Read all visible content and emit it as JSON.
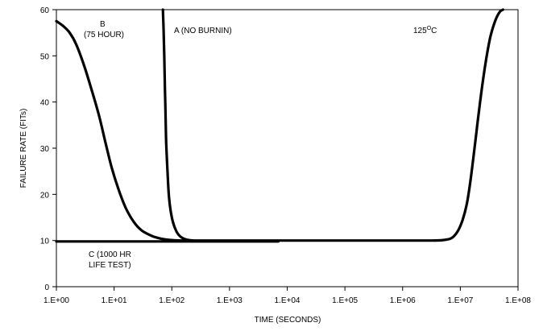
{
  "chart_data": {
    "type": "line",
    "title": "",
    "xlabel": "TIME (SECONDS)",
    "ylabel": "FAILURE RATE (FITs)",
    "x_scale": "log",
    "xlim": [
      1,
      100000000
    ],
    "ylim": [
      0,
      60
    ],
    "x_ticks": [
      1,
      10,
      100,
      1000,
      10000,
      100000,
      1000000,
      10000000,
      100000000
    ],
    "x_tick_labels": [
      "1.E+00",
      "1.E+01",
      "1.E+02",
      "1.E+03",
      "1.E+04",
      "1.E+05",
      "1.E+06",
      "1.E+07",
      "1.E+08"
    ],
    "y_ticks": [
      0,
      10,
      20,
      30,
      40,
      50,
      60
    ],
    "y_tick_labels": [
      "0",
      "10",
      "20",
      "30",
      "40",
      "50",
      "60"
    ],
    "grid": false,
    "legend": "none",
    "temperature_label": {
      "base": "125",
      "superscript": "O",
      "suffix": "C"
    },
    "series": [
      {
        "name": "A (NO BURNIN)",
        "x": [
          70,
          72,
          74,
          76,
          78,
          80,
          85,
          90,
          100,
          115,
          130,
          150,
          180,
          250,
          400,
          1000,
          10000,
          100000,
          1000000,
          3000000,
          5000000,
          7000000,
          9000000,
          11000000,
          13000000,
          15000000,
          18000000,
          22000000,
          27000000,
          33000000,
          40000000,
          48000000,
          55000000
        ],
        "y": [
          60,
          56,
          50,
          43,
          37,
          31,
          24,
          19,
          15,
          12.5,
          11.3,
          10.6,
          10.2,
          10,
          10,
          10,
          10,
          10,
          10,
          10,
          10.1,
          10.5,
          12,
          14.5,
          18,
          23,
          31,
          40,
          48,
          54,
          57.5,
          59.5,
          60.5
        ]
      },
      {
        "name": "B (75 HOUR)",
        "label_lines": [
          "B",
          "(75 HOUR)"
        ],
        "x": [
          1,
          1.3,
          1.7,
          2.2,
          3,
          4,
          5.5,
          7,
          9,
          12,
          16,
          22,
          30,
          45,
          60,
          80,
          110,
          150,
          200
        ],
        "y": [
          57.5,
          56.5,
          55,
          52.5,
          48,
          43,
          37,
          31.5,
          26,
          21,
          17,
          14,
          12.2,
          11,
          10.5,
          10.2,
          10.05,
          10,
          10
        ]
      },
      {
        "name": "C (1000 HR LIFE TEST)",
        "label_lines": [
          "C (1000 HR",
          "LIFE TEST)"
        ],
        "x": [
          1,
          10,
          100,
          1000,
          7000
        ],
        "y": [
          9.8,
          9.8,
          9.8,
          9.8,
          9.8
        ]
      }
    ]
  }
}
